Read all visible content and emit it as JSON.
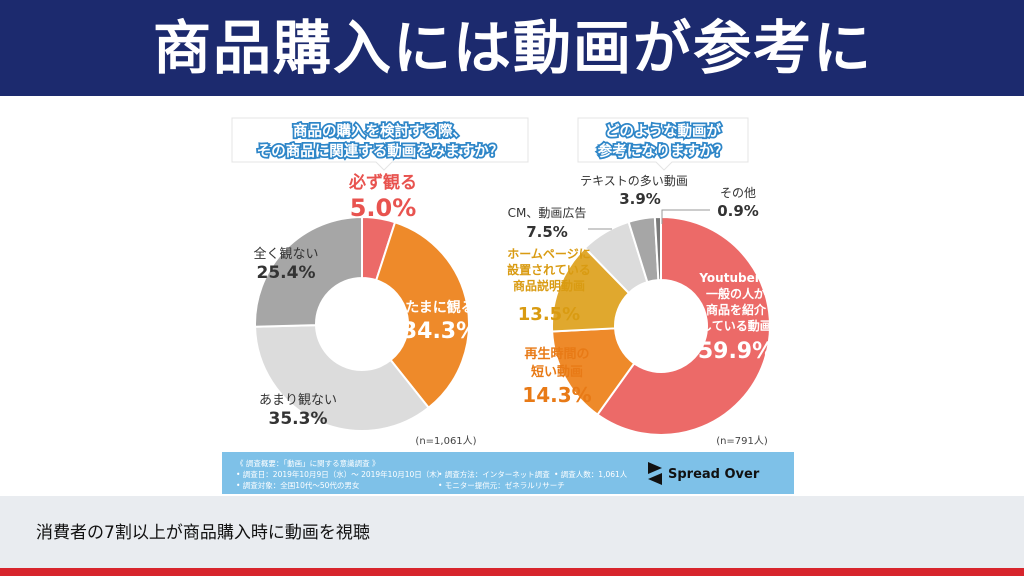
{
  "header": {
    "title": "商品購入には動画が参考に"
  },
  "infographic": {
    "left_question": [
      "商品の購入を検討する際、",
      "その商品に関連する動画をみますか？"
    ],
    "right_question": [
      "どのような動画が",
      "参考になりますか？"
    ],
    "survey": {
      "line1": "《 調査概要：「動画」に関する意識調査 》",
      "line2a": "• 調査日：2019年10月9日（水）～ 2019年10月10日（木）",
      "line2b": "• 調査方法：インターネット調査",
      "line2c": "• 調査人数：1,061人",
      "line3a": "• 調査対象：全国10代～50代の男女",
      "line3b": "• モニター提供元：ゼネラルリサーチ"
    },
    "logo_text": "Spread Over"
  },
  "footer": {
    "caption": "消費者の7割以上が商品購入時に動画を視聴"
  },
  "colors": {
    "header_bg": "#1c2a6e",
    "red": "#ec6a68",
    "orange": "#ee8a2a",
    "gold": "#e0a82e",
    "gray_dark": "#a6a6a6",
    "gray_light": "#d9d9d9",
    "gray_mid": "#c4c4c4",
    "gray_deep": "#8f8f8f",
    "survey_bg": "#7ec1e8",
    "stripe_red": "#d7252c"
  },
  "chart_data": [
    {
      "type": "pie",
      "variant": "donut",
      "note": "(n=1,061人)",
      "unit": "%",
      "slices": [
        {
          "label": "必ず観る",
          "value": 5.0,
          "display": "5.0%",
          "color": "#ec6a68"
        },
        {
          "label": "たまに観る",
          "value": 34.3,
          "display": "34.3%",
          "color": "#ee8a2a"
        },
        {
          "label": "あまり観ない",
          "value": 35.3,
          "display": "35.3%",
          "color": "#dcdcdc"
        },
        {
          "label": "全く観ない",
          "value": 25.4,
          "display": "25.4%",
          "color": "#a6a6a6"
        }
      ]
    },
    {
      "type": "pie",
      "variant": "donut",
      "note": "(n=791人)",
      "unit": "%",
      "slices": [
        {
          "label": "Youtuberや一般の人が商品を紹介している動画",
          "lines": [
            "Youtuberや",
            "一般の人が",
            "商品を紹介",
            "している動画"
          ],
          "value": 59.9,
          "display": "59.9%",
          "color": "#ec6a68"
        },
        {
          "label": "再生時間の短い動画",
          "lines": [
            "再生時間の",
            "短い動画"
          ],
          "value": 14.3,
          "display": "14.3%",
          "color": "#ee8a2a"
        },
        {
          "label": "ホームページに設置されている商品説明動画",
          "lines": [
            "ホームページに",
            "設置されている",
            "商品説明動画"
          ],
          "value": 13.5,
          "display": "13.5%",
          "color": "#e0a82e"
        },
        {
          "label": "CM、動画広告",
          "lines": [
            "CM、動画広告"
          ],
          "value": 7.5,
          "display": "7.5%",
          "color": "#dcdcdc"
        },
        {
          "label": "テキストの多い動画",
          "lines": [
            "テキストの多い動画"
          ],
          "value": 3.9,
          "display": "3.9%",
          "color": "#a6a6a6"
        },
        {
          "label": "その他",
          "lines": [
            "その他"
          ],
          "value": 0.9,
          "display": "0.9%",
          "color": "#7a7a7a"
        }
      ]
    }
  ]
}
